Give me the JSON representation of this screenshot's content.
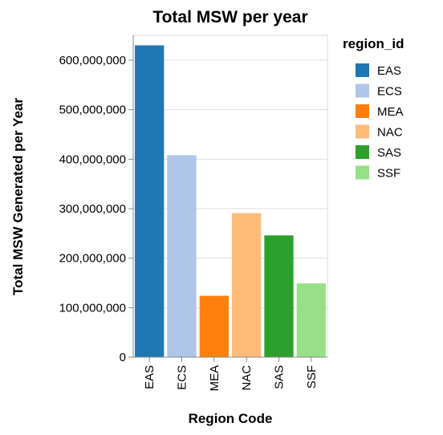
{
  "chart_data": {
    "type": "bar",
    "title": "Total MSW per year",
    "xlabel": "Region Code",
    "ylabel": "Total MSW Generated per Year",
    "categories": [
      "EAS",
      "ECS",
      "MEA",
      "NAC",
      "SAS",
      "SSF"
    ],
    "values": [
      630000000,
      408000000,
      124000000,
      291000000,
      246000000,
      149000000
    ],
    "colors": [
      "#1f77b4",
      "#aec7e8",
      "#ff7f0e",
      "#ffbb78",
      "#2ca02c",
      "#98df8a"
    ],
    "ylim": [
      0,
      600000000
    ],
    "yticks": [
      "0",
      "100,000,000",
      "200,000,000",
      "300,000,000",
      "400,000,000",
      "500,000,000",
      "600,000,000"
    ],
    "grid": true,
    "legend": {
      "title": "region_id",
      "placement": "right",
      "entries": [
        "EAS",
        "ECS",
        "MEA",
        "NAC",
        "SAS",
        "SSF"
      ]
    }
  }
}
